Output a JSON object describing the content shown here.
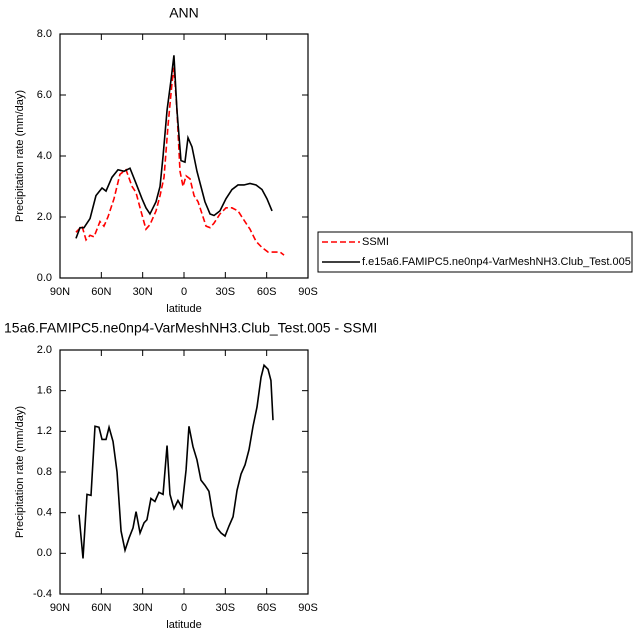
{
  "chart_data": [
    {
      "type": "line",
      "title": "ANN",
      "xlabel": "latitude",
      "ylabel": "Precipitation rate (mm/day)",
      "xlim": [
        90,
        -90
      ],
      "xticks": [
        {
          "value": 90,
          "label": "90N"
        },
        {
          "value": 60,
          "label": "60N"
        },
        {
          "value": 30,
          "label": "30N"
        },
        0,
        {
          "value": -30,
          "label": "30S"
        },
        {
          "value": -60,
          "label": "60S"
        },
        {
          "value": -90,
          "label": "90S"
        }
      ],
      "ylim": [
        0,
        8
      ],
      "yticks": [
        {
          "value": 0,
          "label": "0.0"
        },
        {
          "value": 2,
          "label": "2.0"
        },
        {
          "value": 4,
          "label": "4.0"
        },
        {
          "value": 6,
          "label": "6.0"
        },
        {
          "value": 8,
          "label": "8.0"
        }
      ],
      "legend": "right",
      "series": [
        {
          "name": "SSMI",
          "color": "#ff0000",
          "dashed": true,
          "x": [
            78.4,
            74.0,
            71.1,
            68.2,
            65.3,
            61.0,
            58.1,
            55.2,
            50.8,
            46.5,
            42.1,
            37.7,
            34.8,
            31.9,
            27.6,
            24.7,
            20.3,
            17.4,
            14.5,
            11.6,
            8.7,
            7.3,
            5.1,
            2.9,
            0.7,
            -1.5,
            -4.4,
            -7.3,
            -10.2,
            -13.1,
            -16.0,
            -18.9,
            -21.8,
            -26.1,
            -30.5,
            -34.8,
            -39.2,
            -43.5,
            -47.9,
            -52.3,
            -56.6,
            -61.0,
            -65.3,
            -69.7,
            -72.6
          ],
          "values": [
            1.5,
            1.7,
            1.25,
            1.4,
            1.35,
            1.85,
            1.7,
            2.0,
            2.6,
            3.4,
            3.55,
            3.0,
            2.8,
            2.3,
            1.6,
            1.75,
            2.2,
            2.7,
            3.3,
            5.0,
            6.4,
            6.9,
            5.5,
            3.5,
            3.0,
            3.35,
            3.25,
            2.7,
            2.5,
            2.1,
            1.7,
            1.65,
            1.8,
            2.1,
            2.3,
            2.3,
            2.2,
            1.9,
            1.6,
            1.2,
            1.0,
            0.85,
            0.85,
            0.85,
            0.75
          ]
        },
        {
          "name": "f.e15a6.FAMIPC5.ne0np4-VarMeshNH3.Club_Test.005",
          "color": "#000000",
          "dashed": false,
          "x": [
            78.4,
            75.5,
            72.6,
            68.2,
            63.9,
            59.5,
            56.6,
            52.3,
            47.9,
            43.5,
            39.2,
            34.8,
            30.5,
            27.6,
            24.7,
            20.3,
            17.4,
            15.2,
            12.3,
            9.4,
            7.3,
            5.1,
            2.2,
            -0.7,
            -2.9,
            -5.8,
            -9.4,
            -12.3,
            -15.2,
            -18.9,
            -21.8,
            -26.1,
            -30.5,
            -34.8,
            -39.2,
            -43.5,
            -47.9,
            -52.3,
            -56.6,
            -60.2,
            -63.9
          ],
          "values": [
            1.3,
            1.65,
            1.65,
            1.95,
            2.7,
            2.95,
            2.85,
            3.3,
            3.55,
            3.5,
            3.6,
            3.1,
            2.6,
            2.3,
            2.1,
            2.5,
            3.0,
            4.0,
            5.5,
            6.5,
            7.3,
            5.5,
            3.85,
            3.8,
            4.6,
            4.3,
            3.5,
            3.0,
            2.5,
            2.1,
            2.05,
            2.2,
            2.6,
            2.9,
            3.05,
            3.05,
            3.1,
            3.05,
            2.9,
            2.6,
            2.2
          ]
        }
      ]
    },
    {
      "type": "line",
      "title": "15a6.FAMIPC5.ne0np4-VarMeshNH3.Club_Test.005 - SSMI",
      "xlabel": "latitude",
      "ylabel": "Precipitation rate (mm/day)",
      "xlim": [
        90,
        -90
      ],
      "xticks": [
        {
          "value": 90,
          "label": "90N"
        },
        {
          "value": 60,
          "label": "60N"
        },
        {
          "value": 30,
          "label": "30N"
        },
        0,
        {
          "value": -30,
          "label": "30S"
        },
        {
          "value": -60,
          "label": "60S"
        },
        {
          "value": -90,
          "label": "90S"
        }
      ],
      "ylim": [
        -0.4,
        2.0
      ],
      "yticks": [
        -0.4,
        {
          "value": 0,
          "label": "0.0"
        },
        0.4,
        0.8,
        1.2,
        1.6,
        {
          "value": 2,
          "label": "2.0"
        }
      ],
      "series": [
        {
          "color": "#000000",
          "dashed": false,
          "x": [
            76.2,
            73.3,
            70.4,
            67.5,
            64.6,
            61.7,
            59.5,
            56.6,
            54.4,
            51.5,
            48.6,
            45.7,
            42.8,
            39.9,
            37.0,
            34.8,
            31.9,
            29.0,
            26.9,
            24.0,
            21.1,
            18.2,
            15.2,
            12.3,
            10.2,
            7.3,
            4.4,
            1.5,
            -1.5,
            -3.6,
            -6.5,
            -9.4,
            -12.3,
            -15.2,
            -18.1,
            -21.0,
            -23.9,
            -26.9,
            -29.8,
            -32.7,
            -35.6,
            -38.5,
            -41.4,
            -44.3,
            -47.2,
            -50.1,
            -53.0,
            -55.9,
            -58.1,
            -61.0,
            -63.1,
            -64.6
          ],
          "values": [
            0.38,
            -0.05,
            0.58,
            0.57,
            1.25,
            1.24,
            1.12,
            1.12,
            1.24,
            1.1,
            0.8,
            0.22,
            0.03,
            0.15,
            0.25,
            0.41,
            0.2,
            0.3,
            0.33,
            0.54,
            0.51,
            0.6,
            0.58,
            1.06,
            0.58,
            0.44,
            0.52,
            0.45,
            0.82,
            1.25,
            1.05,
            0.92,
            0.72,
            0.67,
            0.61,
            0.37,
            0.25,
            0.2,
            0.17,
            0.27,
            0.36,
            0.62,
            0.78,
            0.87,
            1.02,
            1.25,
            1.44,
            1.73,
            1.85,
            1.81,
            1.7,
            1.31
          ]
        }
      ]
    }
  ]
}
